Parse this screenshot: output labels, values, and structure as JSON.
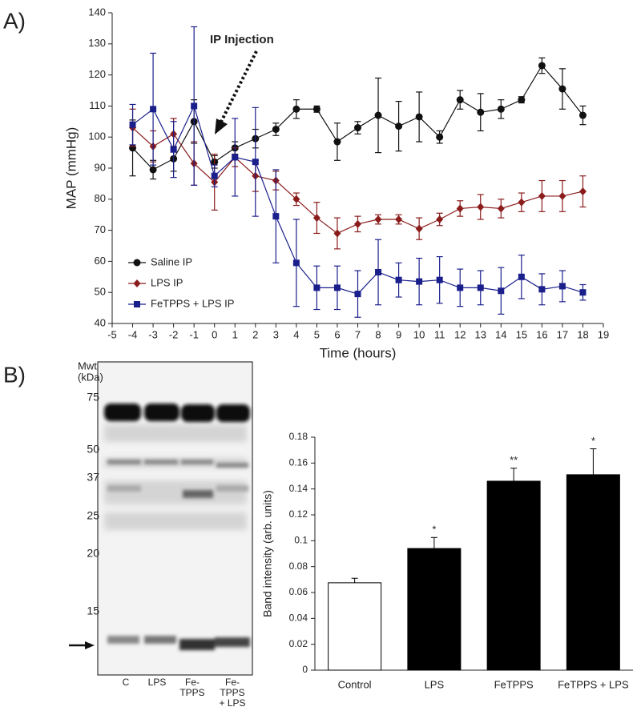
{
  "panel_labels": [
    "A)",
    "B)"
  ],
  "chart_data": [
    {
      "type": "line",
      "xlabel": "Time (hours)",
      "ylabel": "MAP (mmHg)",
      "annotation": "IP Injection",
      "x": [
        -4,
        -3,
        -2,
        -1,
        0,
        1,
        2,
        3,
        4,
        5,
        6,
        7,
        8,
        9,
        10,
        11,
        12,
        13,
        14,
        15,
        16,
        17,
        18
      ],
      "xlim": [
        -5,
        19
      ],
      "xticks": [
        -5,
        -4,
        -3,
        -2,
        -1,
        0,
        1,
        2,
        3,
        4,
        5,
        6,
        7,
        8,
        9,
        10,
        11,
        12,
        13,
        14,
        15,
        16,
        17,
        18,
        19
      ],
      "ylim": [
        40,
        140
      ],
      "yticks": [
        40,
        50,
        60,
        70,
        80,
        90,
        100,
        110,
        120,
        130,
        140
      ],
      "legend": "lower left",
      "series": [
        {
          "name": "Saline IP",
          "color": "#111111",
          "marker": "circle",
          "values": [
            96.5,
            89.5,
            93,
            105,
            92,
            96.5,
            99.5,
            102.5,
            109,
            109,
            98.5,
            103,
            107,
            103.5,
            106.5,
            100,
            112,
            108,
            109,
            112,
            123,
            115.5,
            107
          ],
          "errors": [
            9,
            3,
            4,
            7,
            2,
            2,
            3,
            2,
            3,
            1,
            6,
            2,
            12,
            8,
            8,
            2,
            3,
            6,
            3,
            1,
            2.5,
            6.5,
            3
          ]
        },
        {
          "name": "LPS IP",
          "color": "#8b1c1c",
          "marker": "diamond",
          "values": [
            103,
            97,
            101,
            91.5,
            85.5,
            93.5,
            87.5,
            86,
            80,
            74,
            69,
            72,
            73.5,
            73.5,
            70.5,
            73.5,
            77,
            77.5,
            77,
            79,
            81,
            81,
            82.5
          ],
          "errors": [
            6,
            5,
            5,
            7,
            9,
            3,
            5,
            3,
            2,
            5,
            5,
            2.5,
            1.5,
            1.5,
            3.5,
            2,
            2.5,
            4,
            3,
            3,
            5,
            5,
            5
          ]
        },
        {
          "name": "FeTPPS + LPS IP",
          "color": "#1a1f8c",
          "marker": "square",
          "values": [
            104,
            109,
            96,
            110,
            87.5,
            93.5,
            92,
            74.5,
            59.5,
            51.5,
            51.5,
            49.5,
            56.5,
            54,
            53.5,
            54,
            51.5,
            51.5,
            50.5,
            55,
            51,
            52,
            50
          ],
          "errors": [
            6.5,
            18,
            9,
            25.5,
            3.5,
            12.5,
            17.5,
            15,
            14,
            7,
            7,
            7.5,
            10.5,
            5.5,
            7.5,
            7.5,
            6,
            5.5,
            7.5,
            7,
            5,
            5,
            2.5
          ]
        }
      ]
    },
    {
      "type": "bar",
      "ylabel": "Band intensity (arb. units)",
      "categories": [
        "Control",
        "LPS",
        "FeTPPS",
        "FeTPPS + LPS"
      ],
      "values": [
        0.0675,
        0.094,
        0.146,
        0.151
      ],
      "errors": [
        0.0035,
        0.0085,
        0.01,
        0.02
      ],
      "colors": [
        "#ffffff",
        "#000000",
        "#000000",
        "#000000"
      ],
      "significance": [
        null,
        "*",
        "**",
        "*"
      ],
      "ylim": [
        0,
        0.18
      ],
      "yticks": [
        0,
        0.02,
        0.04,
        0.06,
        0.08,
        0.1,
        0.12,
        0.14,
        0.16,
        0.18
      ]
    }
  ],
  "blot": {
    "unit_label": [
      "Mwt",
      "(kDa)"
    ],
    "markers": [
      "75",
      "50",
      "37",
      "25",
      "20",
      "15"
    ],
    "lanes": [
      [
        "C"
      ],
      [
        "LPS"
      ],
      [
        "Fe-",
        "TPPS"
      ],
      [
        "Fe-",
        "TPPS",
        "+ LPS"
      ]
    ]
  }
}
